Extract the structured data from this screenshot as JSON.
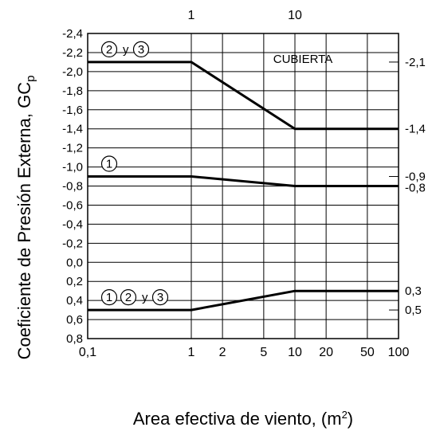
{
  "chart_data": {
    "type": "line",
    "title": "",
    "xlabel": "Area efectiva de viento, (m",
    "xlabel_sup": "2",
    "xlabel_end": ")",
    "ylabel": "Coeficiente de Presión Externa, GC",
    "ylabel_sub": "p",
    "x_scale": "log",
    "xlim": [
      0.1,
      100
    ],
    "x_ticks": [
      "0,1",
      "1",
      "2",
      "5",
      "10",
      "20",
      "50",
      "100"
    ],
    "x_top_ticks": [
      "1",
      "10"
    ],
    "ylim": [
      -2.4,
      0.8
    ],
    "y_inverted": true,
    "y_ticks": [
      "-2,4",
      "-2,2",
      "-2,0",
      "-1,8",
      "-1,6",
      "-1,4",
      "-1,2",
      "-1,0",
      "-0,8",
      "-0,6",
      "-0,4",
      "-0,2",
      "0,0",
      "0,2",
      "0,4",
      "0,6",
      "0,8"
    ],
    "grid": true,
    "annotation": "CUBIERTA",
    "series": [
      {
        "zones": [
          "2",
          "3"
        ],
        "zone_join": "y",
        "x": [
          0.1,
          1,
          10,
          100
        ],
        "y": [
          -2.1,
          -2.1,
          -1.4,
          -1.4
        ],
        "end_labels": [
          "-2,1",
          "-1,4"
        ]
      },
      {
        "zones": [
          "1"
        ],
        "zone_join": "",
        "x": [
          0.1,
          1,
          10,
          100
        ],
        "y": [
          -0.9,
          -0.9,
          -0.8,
          -0.8
        ],
        "end_labels": [
          "-0,9",
          "-0,8"
        ]
      },
      {
        "zones": [
          "1",
          "2",
          "3"
        ],
        "zone_join": "y",
        "x": [
          0.1,
          1,
          10,
          100
        ],
        "y": [
          0.5,
          0.5,
          0.3,
          0.3
        ],
        "end_labels": [
          "0,3",
          "0,5"
        ]
      }
    ]
  }
}
